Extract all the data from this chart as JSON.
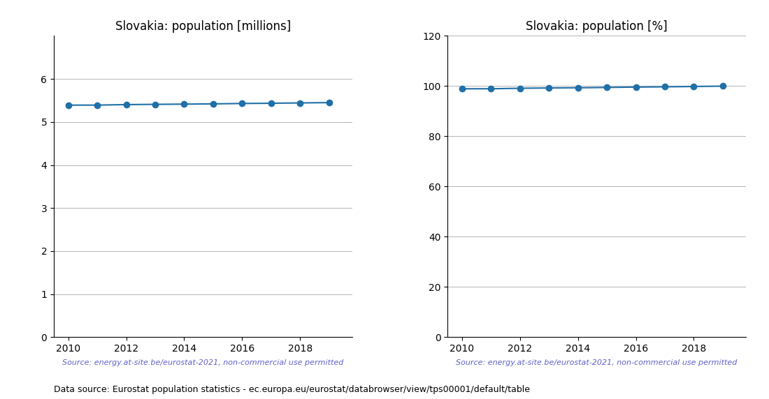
{
  "years": [
    2010,
    2011,
    2012,
    2013,
    2014,
    2015,
    2016,
    2017,
    2018,
    2019
  ],
  "pop_millions": [
    5.392,
    5.392,
    5.404,
    5.41,
    5.415,
    5.421,
    5.43,
    5.435,
    5.443,
    5.45
  ],
  "pop_percent": [
    98.94,
    98.95,
    99.15,
    99.27,
    99.35,
    99.47,
    99.62,
    99.72,
    99.85,
    100.0
  ],
  "title_millions": "Slovakia: population [millions]",
  "title_percent": "Slovakia: population [%]",
  "source_text": "Source: energy.at-site.be/eurostat-2021, non-commercial use permitted",
  "bottom_text": "Data source: Eurostat population statistics - ec.europa.eu/eurostat/databrowser/view/tps00001/default/table",
  "line_color": "#1f6fa8",
  "source_color": "#6060cc",
  "ylim_millions": [
    0,
    7
  ],
  "ylim_percent": [
    0,
    120
  ],
  "yticks_millions": [
    0,
    1,
    2,
    3,
    4,
    5,
    6
  ],
  "yticks_percent": [
    0,
    20,
    40,
    60,
    80,
    100,
    120
  ],
  "background_color": "#ffffff",
  "grid_color": "#aaaaaa"
}
